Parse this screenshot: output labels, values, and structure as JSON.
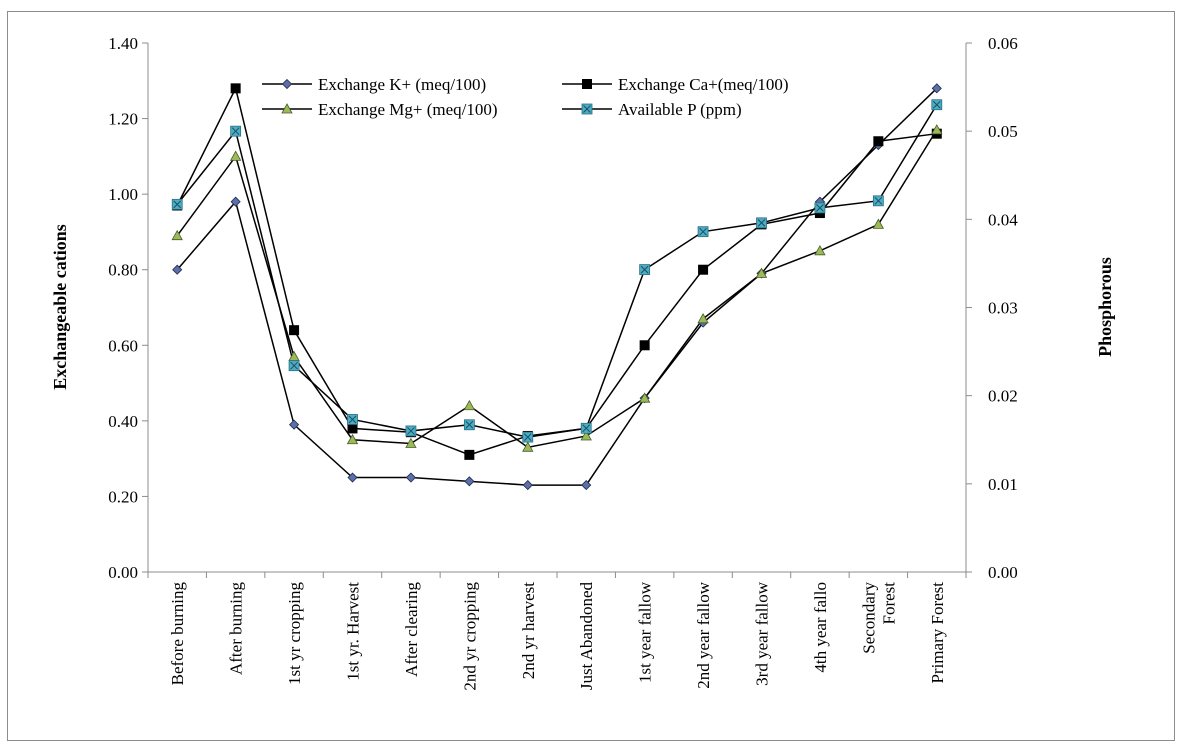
{
  "chart_data": {
    "type": "line",
    "title": "",
    "xlabel": "",
    "ylabel_left": "Exchangeable cations",
    "ylabel_right": "Phosphorous",
    "ylim_left": [
      0,
      1.4
    ],
    "ylim_right": [
      0,
      0.06
    ],
    "yticks_left": [
      "0.00",
      "0.20",
      "0.40",
      "0.60",
      "0.80",
      "1.00",
      "1.20",
      "1.40"
    ],
    "yticks_right": [
      "0.00",
      "0.01",
      "0.02",
      "0.03",
      "0.04",
      "0.05",
      "0.06"
    ],
    "grid": false,
    "legend_position": "top-center",
    "categories": [
      [
        "Before burning"
      ],
      [
        "After burning"
      ],
      [
        "1st yr cropping"
      ],
      [
        "1st yr. Harvest"
      ],
      [
        "After clearing"
      ],
      [
        "2nd yr cropping"
      ],
      [
        "2nd yr harvest"
      ],
      [
        "Just Abandoned"
      ],
      [
        "1st year fallow"
      ],
      [
        "2nd year fallow"
      ],
      [
        "3rd year fallow"
      ],
      [
        "4th year fallo"
      ],
      [
        "Secondary",
        "Forest"
      ],
      [
        "Primary Forest"
      ]
    ],
    "series": [
      {
        "name": "Exchange K+ (meq/100)",
        "axis": "left",
        "marker": "diamond",
        "color": "#5b6fa8",
        "values": [
          0.8,
          0.98,
          0.39,
          0.25,
          0.25,
          0.24,
          0.23,
          0.23,
          0.46,
          0.66,
          0.79,
          0.98,
          1.13,
          1.28
        ]
      },
      {
        "name": "Exchange Ca+(meq/100)",
        "axis": "left",
        "marker": "square",
        "color": "#000000",
        "values": [
          0.97,
          1.28,
          0.64,
          0.38,
          0.37,
          0.31,
          0.36,
          0.38,
          0.6,
          0.8,
          0.92,
          0.95,
          1.14,
          1.16
        ]
      },
      {
        "name": "Exchange Mg+ (meq/100)",
        "axis": "left",
        "marker": "triangle",
        "color": "#9bbb59",
        "values": [
          0.89,
          1.1,
          0.57,
          0.35,
          0.34,
          0.44,
          0.33,
          0.36,
          0.46,
          0.67,
          0.79,
          0.85,
          0.92,
          1.17
        ]
      },
      {
        "name": "Available P (ppm)",
        "axis": "right",
        "marker": "starsquare",
        "color": "#4bacc6",
        "values": [
          0.0417,
          0.05,
          0.0234,
          0.0173,
          0.016,
          0.0167,
          0.0153,
          0.0163,
          0.0343,
          0.0386,
          0.0396,
          0.0413,
          0.0421,
          0.053
        ]
      }
    ]
  }
}
